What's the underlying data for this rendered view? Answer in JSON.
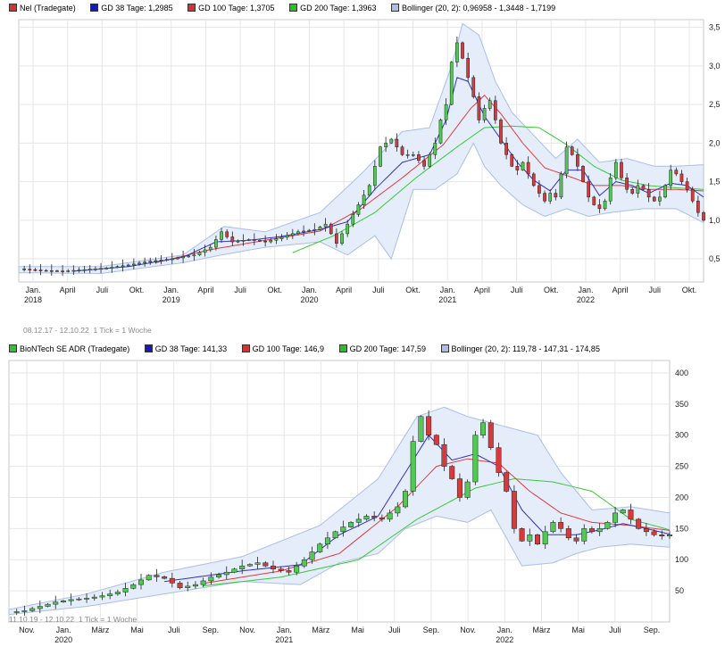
{
  "chart_data": [
    {
      "type": "candlestick",
      "legend": [
        {
          "label": "Nel (Tradegate)",
          "color": "#d83131"
        },
        {
          "label": "GD 38 Tage: 1,2985",
          "color": "#1a1ab8"
        },
        {
          "label": "GD 100 Tage: 1,3705",
          "color": "#d83131"
        },
        {
          "label": "GD 200 Tage: 1,3963",
          "color": "#22c322"
        },
        {
          "label": "Bollinger (20, 2): 0,96958 - 1,3448 - 1,7199",
          "color": "#a9bde6"
        }
      ],
      "range_note": "08.12.17 - 12.10.22",
      "tick_note": "1 Tick = 1 Woche",
      "ylim": [
        0.2,
        3.6
      ],
      "yticks": [
        "0,5",
        "1,0",
        "1,5",
        "2,0",
        "2,5",
        "3,0",
        "3,5"
      ],
      "ytick_values": [
        0.5,
        1.0,
        1.5,
        2.0,
        2.5,
        3.0,
        3.5
      ],
      "xticks": [
        "Jan.",
        "April",
        "Juli",
        "Okt.",
        "Jan.",
        "April",
        "Juli",
        "Okt.",
        "Jan.",
        "April",
        "Juli",
        "Okt.",
        "Jan.",
        "April",
        "Juli",
        "Okt.",
        "Jan.",
        "April",
        "Juli",
        "Okt."
      ],
      "xtick_years": [
        "2018",
        "",
        "",
        "",
        "2019",
        "",
        "",
        "",
        "2020",
        "",
        "",
        "",
        "2021",
        "",
        "",
        "",
        "2022",
        "",
        "",
        ""
      ],
      "price_points": [
        [
          0,
          0.37
        ],
        [
          8,
          0.35
        ],
        [
          16,
          0.34
        ],
        [
          24,
          0.36
        ],
        [
          32,
          0.38
        ],
        [
          40,
          0.42
        ],
        [
          48,
          0.47
        ],
        [
          56,
          0.5
        ],
        [
          64,
          0.55
        ],
        [
          70,
          0.65
        ],
        [
          74,
          0.85
        ],
        [
          78,
          0.72
        ],
        [
          84,
          0.75
        ],
        [
          90,
          0.72
        ],
        [
          96,
          0.78
        ],
        [
          102,
          0.85
        ],
        [
          108,
          0.88
        ],
        [
          112,
          0.95
        ],
        [
          116,
          0.7
        ],
        [
          120,
          0.95
        ],
        [
          124,
          1.2
        ],
        [
          128,
          1.45
        ],
        [
          132,
          1.95
        ],
        [
          136,
          2.05
        ],
        [
          140,
          1.85
        ],
        [
          144,
          1.85
        ],
        [
          148,
          1.7
        ],
        [
          152,
          2.0
        ],
        [
          154,
          2.3
        ],
        [
          156,
          2.5
        ],
        [
          158,
          3.05
        ],
        [
          160,
          3.3
        ],
        [
          162,
          3.1
        ],
        [
          164,
          2.85
        ],
        [
          166,
          2.6
        ],
        [
          168,
          2.3
        ],
        [
          170,
          2.45
        ],
        [
          172,
          2.55
        ],
        [
          174,
          2.3
        ],
        [
          176,
          2.0
        ],
        [
          178,
          1.85
        ],
        [
          180,
          1.7
        ],
        [
          182,
          1.65
        ],
        [
          184,
          1.75
        ],
        [
          186,
          1.6
        ],
        [
          188,
          1.45
        ],
        [
          190,
          1.35
        ],
        [
          192,
          1.25
        ],
        [
          194,
          1.35
        ],
        [
          196,
          1.3
        ],
        [
          198,
          1.6
        ],
        [
          200,
          1.95
        ],
        [
          202,
          1.85
        ],
        [
          204,
          1.7
        ],
        [
          206,
          1.5
        ],
        [
          208,
          1.3
        ],
        [
          210,
          1.2
        ],
        [
          212,
          1.15
        ],
        [
          214,
          1.25
        ],
        [
          216,
          1.55
        ],
        [
          218,
          1.75
        ],
        [
          220,
          1.55
        ],
        [
          222,
          1.4
        ],
        [
          224,
          1.35
        ],
        [
          226,
          1.45
        ],
        [
          228,
          1.4
        ],
        [
          230,
          1.3
        ],
        [
          232,
          1.25
        ],
        [
          234,
          1.3
        ],
        [
          236,
          1.45
        ],
        [
          238,
          1.65
        ],
        [
          240,
          1.6
        ],
        [
          242,
          1.5
        ],
        [
          244,
          1.4
        ],
        [
          246,
          1.25
        ],
        [
          248,
          1.1
        ],
        [
          250,
          1.0
        ]
      ],
      "sma38": [
        [
          20,
          0.34
        ],
        [
          40,
          0.4
        ],
        [
          60,
          0.52
        ],
        [
          72,
          0.72
        ],
        [
          84,
          0.74
        ],
        [
          96,
          0.79
        ],
        [
          110,
          0.88
        ],
        [
          120,
          0.98
        ],
        [
          130,
          1.4
        ],
        [
          140,
          1.75
        ],
        [
          150,
          1.85
        ],
        [
          156,
          2.3
        ],
        [
          160,
          2.85
        ],
        [
          164,
          2.8
        ],
        [
          170,
          2.35
        ],
        [
          176,
          2.05
        ],
        [
          182,
          1.75
        ],
        [
          188,
          1.52
        ],
        [
          194,
          1.38
        ],
        [
          200,
          1.65
        ],
        [
          206,
          1.65
        ],
        [
          212,
          1.32
        ],
        [
          218,
          1.5
        ],
        [
          224,
          1.45
        ],
        [
          230,
          1.35
        ],
        [
          238,
          1.48
        ],
        [
          244,
          1.45
        ],
        [
          250,
          1.3
        ]
      ],
      "sma100": [
        [
          50,
          0.45
        ],
        [
          70,
          0.62
        ],
        [
          90,
          0.74
        ],
        [
          110,
          0.86
        ],
        [
          125,
          1.15
        ],
        [
          140,
          1.55
        ],
        [
          155,
          1.98
        ],
        [
          165,
          2.45
        ],
        [
          170,
          2.62
        ],
        [
          176,
          2.38
        ],
        [
          184,
          2.0
        ],
        [
          192,
          1.68
        ],
        [
          200,
          1.58
        ],
        [
          210,
          1.45
        ],
        [
          220,
          1.45
        ],
        [
          230,
          1.4
        ],
        [
          240,
          1.4
        ],
        [
          250,
          1.38
        ]
      ],
      "sma200": [
        [
          100,
          0.58
        ],
        [
          115,
          0.8
        ],
        [
          130,
          1.1
        ],
        [
          145,
          1.55
        ],
        [
          160,
          1.95
        ],
        [
          170,
          2.2
        ],
        [
          180,
          2.22
        ],
        [
          190,
          2.2
        ],
        [
          200,
          1.98
        ],
        [
          210,
          1.7
        ],
        [
          220,
          1.52
        ],
        [
          230,
          1.45
        ],
        [
          240,
          1.42
        ],
        [
          250,
          1.4
        ]
      ],
      "boll_upper": [
        [
          0,
          0.4
        ],
        [
          30,
          0.4
        ],
        [
          60,
          0.55
        ],
        [
          75,
          0.92
        ],
        [
          90,
          0.85
        ],
        [
          110,
          1.1
        ],
        [
          125,
          1.6
        ],
        [
          140,
          2.15
        ],
        [
          150,
          2.2
        ],
        [
          158,
          3.0
        ],
        [
          162,
          3.55
        ],
        [
          168,
          3.4
        ],
        [
          174,
          2.8
        ],
        [
          180,
          2.4
        ],
        [
          188,
          2.1
        ],
        [
          196,
          1.8
        ],
        [
          204,
          2.05
        ],
        [
          212,
          1.75
        ],
        [
          222,
          1.8
        ],
        [
          232,
          1.7
        ],
        [
          240,
          1.7
        ],
        [
          250,
          1.72
        ]
      ],
      "boll_lower": [
        [
          0,
          0.32
        ],
        [
          30,
          0.31
        ],
        [
          60,
          0.45
        ],
        [
          74,
          0.55
        ],
        [
          90,
          0.65
        ],
        [
          110,
          0.72
        ],
        [
          120,
          0.55
        ],
        [
          130,
          0.8
        ],
        [
          136,
          0.5
        ],
        [
          144,
          1.4
        ],
        [
          152,
          1.4
        ],
        [
          160,
          1.6
        ],
        [
          166,
          2.0
        ],
        [
          170,
          1.7
        ],
        [
          176,
          1.45
        ],
        [
          184,
          1.2
        ],
        [
          192,
          1.05
        ],
        [
          200,
          1.15
        ],
        [
          208,
          1.05
        ],
        [
          216,
          1.1
        ],
        [
          228,
          1.15
        ],
        [
          240,
          1.15
        ],
        [
          250,
          0.97
        ]
      ]
    },
    {
      "type": "candlestick",
      "legend": [
        {
          "label": "BioNTech SE ADR (Tradegate)",
          "color": "#2fc22f"
        },
        {
          "label": "GD 38 Tage: 141,33",
          "color": "#1a1ab8"
        },
        {
          "label": "GD 100 Tage: 146,9",
          "color": "#d83131"
        },
        {
          "label": "GD 200 Tage: 147,59",
          "color": "#22c322"
        },
        {
          "label": "Bollinger (20, 2): 119,78 - 147,31 - 174,85",
          "color": "#a9bde6"
        }
      ],
      "range_note": "11.10.19 - 12.10.22",
      "tick_note": "1 Tick = 1 Woche",
      "ylim": [
        0,
        420
      ],
      "yticks": [
        "50",
        "100",
        "150",
        "200",
        "250",
        "300",
        "350",
        "400"
      ],
      "ytick_values": [
        50,
        100,
        150,
        200,
        250,
        300,
        350,
        400
      ],
      "xticks": [
        "Nov.",
        "Jan.",
        "März",
        "Mai",
        "Juli",
        "Sep.",
        "Nov.",
        "Jan.",
        "März",
        "Mai",
        "Juli",
        "Sep.",
        "Nov.",
        "Jan.",
        "März",
        "Mai",
        "Juli",
        "Sep."
      ],
      "xtick_years": [
        "",
        "2020",
        "",
        "",
        "",
        "",
        "",
        "2021",
        "",
        "",
        "",
        "",
        "",
        "2022",
        "",
        "",
        "",
        ""
      ],
      "price_points": [
        [
          0,
          15
        ],
        [
          4,
          18
        ],
        [
          8,
          25
        ],
        [
          12,
          32
        ],
        [
          16,
          36
        ],
        [
          20,
          38
        ],
        [
          24,
          42
        ],
        [
          28,
          48
        ],
        [
          32,
          60
        ],
        [
          36,
          75
        ],
        [
          40,
          70
        ],
        [
          44,
          55
        ],
        [
          48,
          60
        ],
        [
          52,
          72
        ],
        [
          56,
          80
        ],
        [
          60,
          90
        ],
        [
          64,
          95
        ],
        [
          68,
          85
        ],
        [
          72,
          80
        ],
        [
          76,
          100
        ],
        [
          80,
          125
        ],
        [
          84,
          145
        ],
        [
          88,
          160
        ],
        [
          92,
          170
        ],
        [
          96,
          165
        ],
        [
          100,
          185
        ],
        [
          102,
          210
        ],
        [
          104,
          290
        ],
        [
          106,
          330
        ],
        [
          108,
          300
        ],
        [
          110,
          285
        ],
        [
          112,
          250
        ],
        [
          114,
          230
        ],
        [
          116,
          200
        ],
        [
          118,
          225
        ],
        [
          120,
          300
        ],
        [
          122,
          320
        ],
        [
          124,
          280
        ],
        [
          126,
          240
        ],
        [
          128,
          210
        ],
        [
          130,
          150
        ],
        [
          132,
          130
        ],
        [
          134,
          140
        ],
        [
          136,
          125
        ],
        [
          138,
          145
        ],
        [
          140,
          160
        ],
        [
          142,
          150
        ],
        [
          144,
          135
        ],
        [
          146,
          130
        ],
        [
          148,
          150
        ],
        [
          150,
          145
        ],
        [
          152,
          150
        ],
        [
          154,
          160
        ],
        [
          156,
          175
        ],
        [
          158,
          180
        ],
        [
          160,
          165
        ],
        [
          162,
          150
        ],
        [
          164,
          145
        ],
        [
          166,
          140
        ],
        [
          168,
          138
        ],
        [
          170,
          140
        ]
      ],
      "sma38": [
        [
          40,
          65
        ],
        [
          60,
          82
        ],
        [
          75,
          92
        ],
        [
          85,
          140
        ],
        [
          95,
          170
        ],
        [
          102,
          240
        ],
        [
          108,
          300
        ],
        [
          114,
          260
        ],
        [
          120,
          270
        ],
        [
          126,
          250
        ],
        [
          132,
          180
        ],
        [
          138,
          140
        ],
        [
          146,
          140
        ],
        [
          152,
          148
        ],
        [
          158,
          158
        ],
        [
          164,
          150
        ],
        [
          170,
          141
        ]
      ],
      "sma100": [
        [
          50,
          62
        ],
        [
          70,
          82
        ],
        [
          85,
          110
        ],
        [
          100,
          185
        ],
        [
          110,
          250
        ],
        [
          118,
          262
        ],
        [
          126,
          255
        ],
        [
          134,
          210
        ],
        [
          142,
          175
        ],
        [
          150,
          160
        ],
        [
          160,
          155
        ],
        [
          170,
          147
        ]
      ],
      "sma200": [
        [
          50,
          58
        ],
        [
          70,
          72
        ],
        [
          90,
          100
        ],
        [
          105,
          165
        ],
        [
          120,
          215
        ],
        [
          130,
          230
        ],
        [
          140,
          225
        ],
        [
          150,
          210
        ],
        [
          160,
          165
        ],
        [
          170,
          148
        ]
      ],
      "boll_upper": [
        [
          0,
          20
        ],
        [
          20,
          45
        ],
        [
          40,
          80
        ],
        [
          60,
          105
        ],
        [
          80,
          155
        ],
        [
          95,
          230
        ],
        [
          105,
          330
        ],
        [
          112,
          345
        ],
        [
          118,
          330
        ],
        [
          124,
          320
        ],
        [
          130,
          310
        ],
        [
          136,
          300
        ],
        [
          142,
          240
        ],
        [
          150,
          180
        ],
        [
          160,
          185
        ],
        [
          170,
          175
        ]
      ],
      "boll_lower": [
        [
          0,
          12
        ],
        [
          20,
          25
        ],
        [
          40,
          45
        ],
        [
          60,
          65
        ],
        [
          75,
          60
        ],
        [
          85,
          95
        ],
        [
          95,
          110
        ],
        [
          102,
          150
        ],
        [
          110,
          170
        ],
        [
          118,
          160
        ],
        [
          124,
          180
        ],
        [
          132,
          90
        ],
        [
          140,
          95
        ],
        [
          146,
          110
        ],
        [
          152,
          120
        ],
        [
          160,
          125
        ],
        [
          170,
          120
        ]
      ]
    }
  ]
}
